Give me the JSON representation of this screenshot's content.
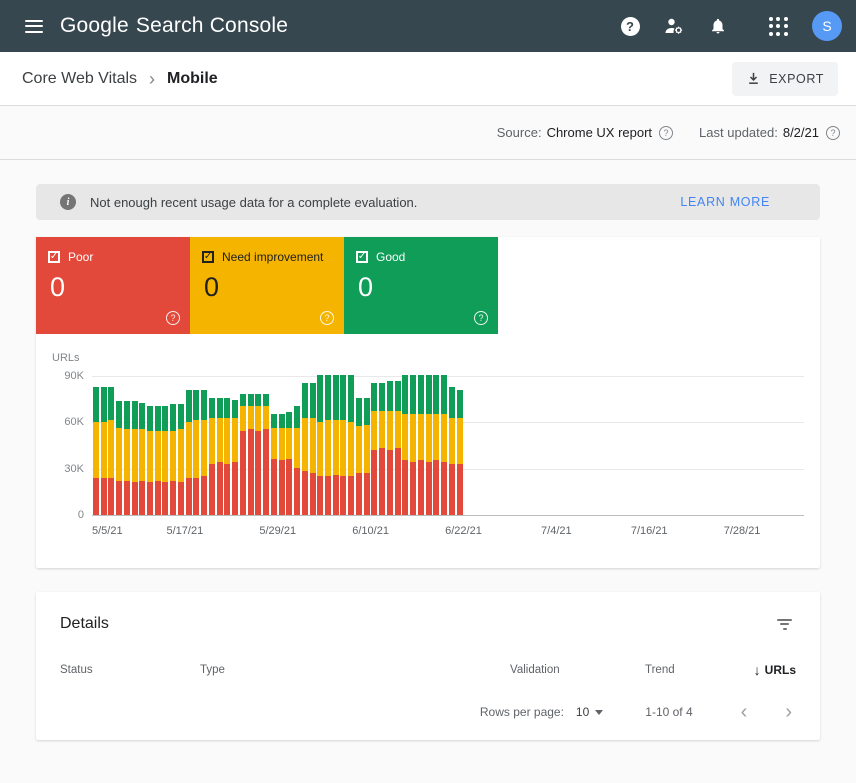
{
  "colors": {
    "poor": "#e2493b",
    "need_improvement": "#f4b400",
    "good": "#0f9d58",
    "link": "#4285f4",
    "header_bg": "#37474f",
    "avatar_bg": "#579af6"
  },
  "header": {
    "logo_google": "Google",
    "logo_product": "Search Console",
    "avatar_initial": "S",
    "icons": {
      "menu": "hamburger",
      "help": "question-circle",
      "user_settings": "person-with-gear",
      "notifications": "bell",
      "apps": "grid-3x3",
      "avatar": "account-circle"
    }
  },
  "breadcrumb": {
    "section": "Core Web Vitals",
    "page": "Mobile",
    "export_label": "EXPORT",
    "export_icon": "download-arrow"
  },
  "meta": {
    "source_label": "Source:",
    "source_value": "Chrome UX report",
    "updated_label": "Last updated:",
    "updated_value": "8/2/21",
    "help_icon": "question-circle-outline"
  },
  "banner": {
    "icon": "info-circle",
    "message": "Not enough recent usage data for a complete evaluation.",
    "action": "LEARN MORE"
  },
  "status_cards": [
    {
      "label": "Poor",
      "value": "0",
      "color": "#e2493b",
      "checkbox": "checked",
      "help_icon": "question-circle-outline"
    },
    {
      "label": "Need improvement",
      "value": "0",
      "color": "#f4b400",
      "checkbox": "checked",
      "help_icon": "question-circle-outline"
    },
    {
      "label": "Good",
      "value": "0",
      "color": "#0f9d58",
      "checkbox": "checked",
      "help_icon": "question-circle-outline"
    }
  ],
  "chart_data": {
    "type": "bar",
    "stacked": true,
    "ylabel": "URLs",
    "ylim": [
      0,
      95
    ],
    "unit": "thousands of URLs",
    "ytick_labels": [
      "0",
      "30K",
      "60K",
      "90K"
    ],
    "x_tick_labels": [
      "5/5/21",
      "5/17/21",
      "5/29/21",
      "6/10/21",
      "6/22/21",
      "7/4/21",
      "7/16/21",
      "7/28/21"
    ],
    "bars_start_date": "5/5/21",
    "bars_end_date": "6/21/21",
    "bar_interval": "daily",
    "grid": true,
    "legend_position": "status-boxes-above",
    "series": [
      {
        "name": "Poor",
        "color": "#e2493b",
        "values": [
          24,
          24,
          24,
          22,
          22,
          21,
          22,
          21,
          22,
          21,
          22,
          21,
          24,
          24,
          25,
          33,
          34,
          33,
          34,
          54,
          55,
          54,
          55,
          36,
          35,
          36,
          30,
          28,
          27,
          25,
          25,
          26,
          25,
          25,
          27,
          27,
          42,
          43,
          42,
          43,
          35,
          34,
          35,
          34,
          35,
          34,
          33,
          33
        ]
      },
      {
        "name": "Need improvement",
        "color": "#f4b400",
        "values": [
          36,
          36,
          37,
          34,
          33,
          34,
          33,
          33,
          32,
          33,
          32,
          34,
          36,
          37,
          36,
          29,
          28,
          29,
          28,
          16,
          15,
          16,
          15,
          20,
          21,
          20,
          26,
          34,
          35,
          35,
          36,
          35,
          36,
          35,
          30,
          31,
          25,
          24,
          25,
          24,
          30,
          31,
          30,
          31,
          30,
          31,
          29,
          29
        ]
      },
      {
        "name": "Good",
        "color": "#0f9d58",
        "values": [
          22,
          22,
          21,
          17,
          18,
          18,
          17,
          16,
          16,
          16,
          17,
          16,
          20,
          19,
          19,
          13,
          13,
          13,
          12,
          8,
          8,
          8,
          8,
          9,
          9,
          10,
          14,
          23,
          23,
          30,
          29,
          29,
          29,
          30,
          18,
          17,
          18,
          18,
          19,
          19,
          25,
          25,
          25,
          25,
          25,
          25,
          20,
          18
        ]
      }
    ]
  },
  "details": {
    "title": "Details",
    "filter_icon": "filter-list",
    "columns": [
      "Status",
      "Type",
      "Validation",
      "Trend",
      "URLs"
    ],
    "sort": {
      "column": "URLs",
      "direction": "desc",
      "icon": "arrow-down"
    },
    "pagination": {
      "rows_per_page_label": "Rows per page:",
      "rows_per_page_value": "10",
      "range": "1-10 of 4",
      "prev_icon": "chevron-left",
      "next_icon": "chevron-right"
    }
  }
}
